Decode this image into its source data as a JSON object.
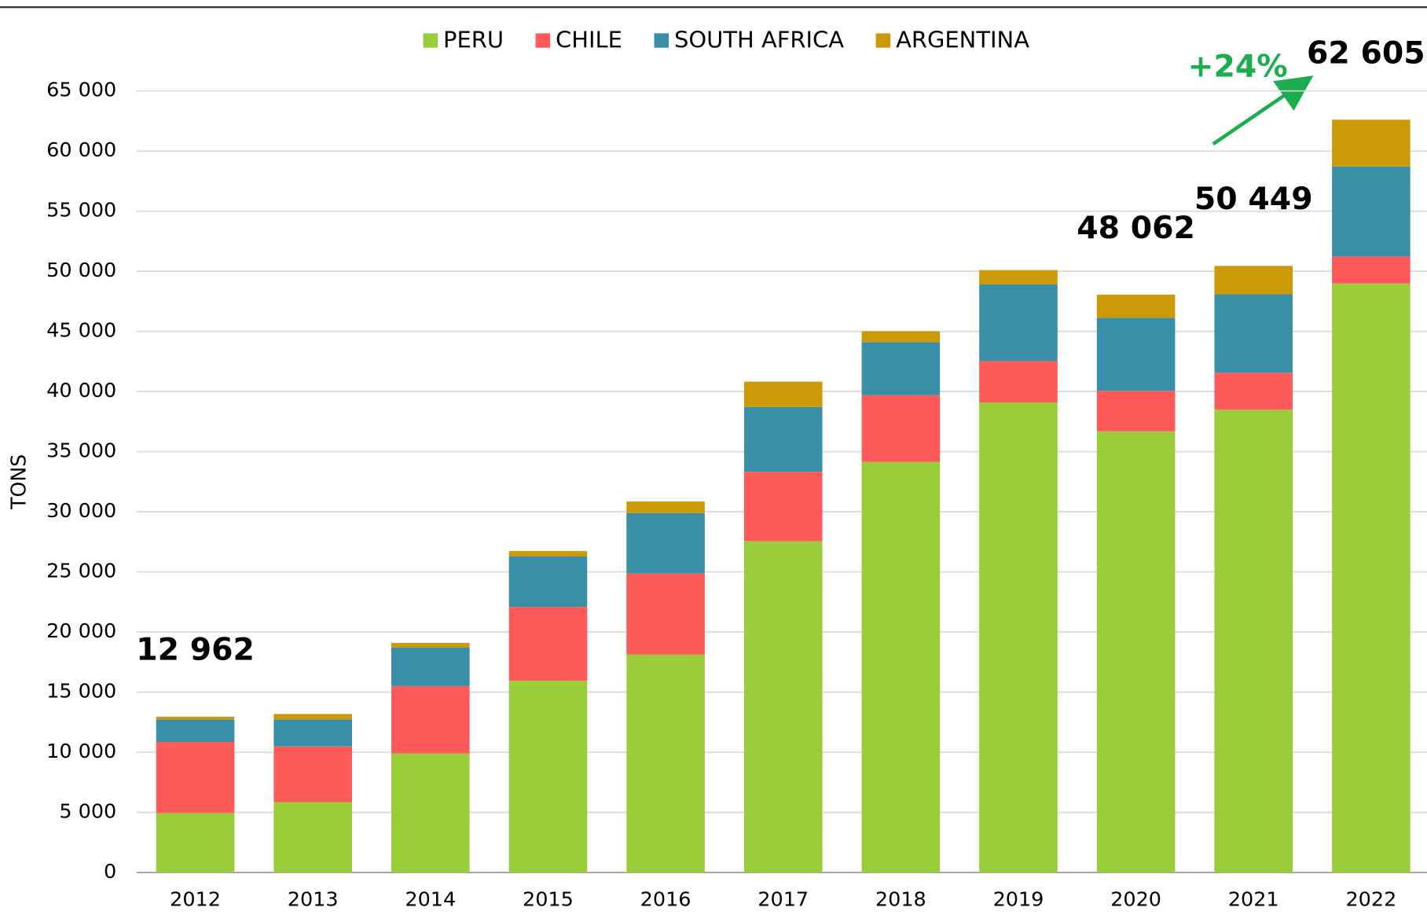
{
  "chart_data": {
    "type": "stacked_bar",
    "y_label": "TONS",
    "categories": [
      "2012",
      "2013",
      "2014",
      "2015",
      "2016",
      "2017",
      "2018",
      "2019",
      "2020",
      "2021",
      "2022"
    ],
    "series": [
      {
        "name": "PERU",
        "color": "#9acd3a",
        "values": [
          4950,
          5850,
          9900,
          15950,
          18120,
          27560,
          34150,
          39090,
          36690,
          38490,
          48980
        ]
      },
      {
        "name": "CHILE",
        "color": "#ff5a5a",
        "values": [
          5900,
          4630,
          5600,
          6140,
          6740,
          5770,
          5540,
          3440,
          3370,
          3070,
          2250
        ]
      },
      {
        "name": "SOUTH AFRICA",
        "color": "#3a8fa8",
        "values": [
          1870,
          2250,
          3220,
          4190,
          5020,
          5390,
          4420,
          6370,
          6070,
          6520,
          7490
        ]
      },
      {
        "name": "ARGENTINA",
        "color": "#cc9a06",
        "values": [
          242,
          450,
          375,
          450,
          970,
          2100,
          900,
          1200,
          1932,
          2369,
          3885
        ]
      }
    ],
    "totals": [
      {
        "category": "2012",
        "value": 12962,
        "label": "12 962"
      },
      {
        "category": "2020",
        "value": 48062,
        "label": "48 062"
      },
      {
        "category": "2021",
        "value": 50449,
        "label": "50 449"
      },
      {
        "category": "2022",
        "value": 62605,
        "label": "62 605"
      }
    ],
    "growth_annotation": "+24%",
    "ylim": [
      0,
      65000
    ],
    "yticks": [
      0,
      {
        "value": 5000,
        "label": "5 000"
      },
      {
        "value": 10000,
        "label": "10 000"
      },
      {
        "value": 15000,
        "label": "15 000"
      },
      {
        "value": 20000,
        "label": "20 000"
      },
      {
        "value": 25000,
        "label": "25 000"
      },
      {
        "value": 30000,
        "label": "30 000"
      },
      {
        "value": 35000,
        "label": "35 000"
      },
      {
        "value": 40000,
        "label": "40 000"
      },
      {
        "value": 45000,
        "label": "45 000"
      },
      {
        "value": 50000,
        "label": "50 000"
      },
      {
        "value": 55000,
        "label": "55 000"
      },
      {
        "value": 60000,
        "label": "60 000"
      },
      {
        "value": 65000,
        "label": "65 000"
      }
    ],
    "grid": true,
    "legend": "top"
  }
}
